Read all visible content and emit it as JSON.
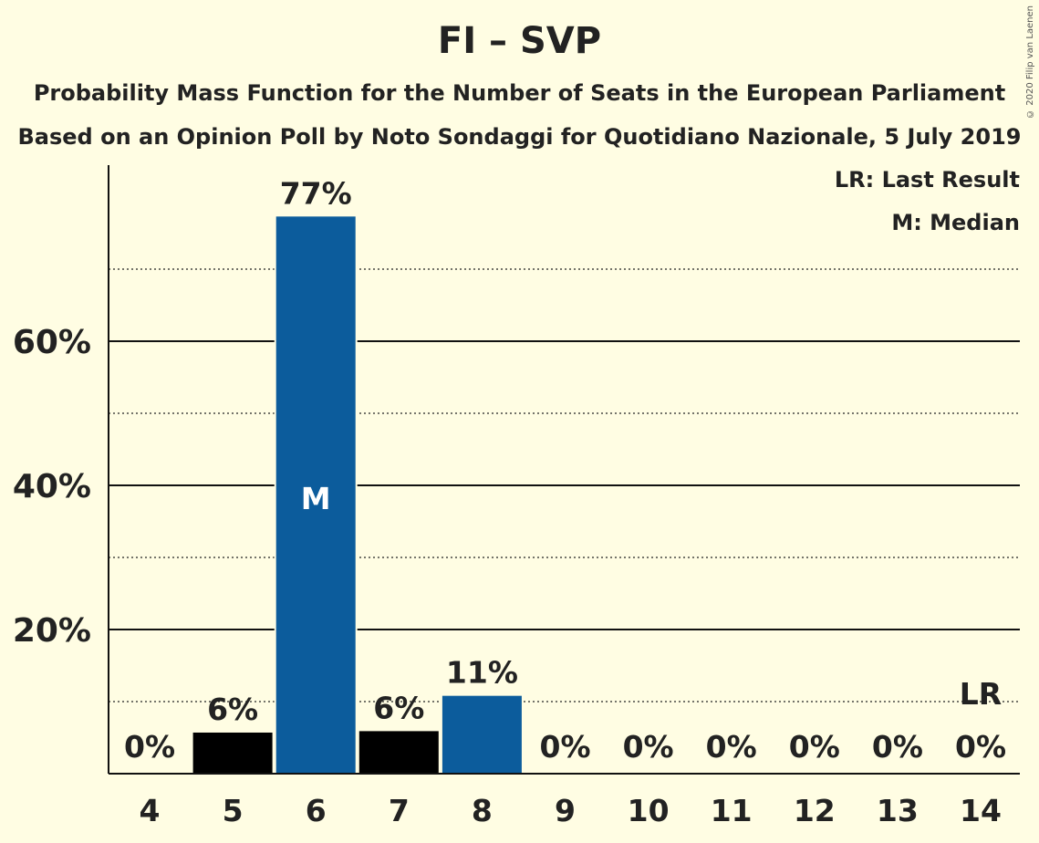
{
  "title": "FI – SVP",
  "subtitle1": "Probability Mass Function for the Number of Seats in the European Parliament",
  "subtitle2": "Based on an Opinion Poll by Noto Sondaggi for Quotidiano Nazionale, 5 July 2019",
  "copyright": "© 2020 Filip van Laenen",
  "legend": {
    "last_result": "LR: Last Result",
    "median": "M: Median"
  },
  "colors": {
    "background": "#fffde3",
    "party": "#0c5c9c",
    "below_median": "#000000",
    "median_text": "#ffffff"
  },
  "chart_data": {
    "type": "bar",
    "categories": [
      "4",
      "5",
      "6",
      "7",
      "8",
      "9",
      "10",
      "11",
      "12",
      "13",
      "14"
    ],
    "values": [
      0,
      6,
      77,
      6,
      11,
      0,
      0,
      0,
      0,
      0,
      0
    ],
    "exact_values": [
      0,
      5.7,
      77.3,
      5.9,
      10.8,
      0,
      0,
      0,
      0,
      0,
      0
    ],
    "labels": [
      "0%",
      "6%",
      "77%",
      "6%",
      "11%",
      "0%",
      "0%",
      "0%",
      "0%",
      "0%",
      "0%"
    ],
    "bar_colors": [
      "#000000",
      "#000000",
      "#0c5c9c",
      "#000000",
      "#0c5c9c",
      "#0c5c9c",
      "#0c5c9c",
      "#0c5c9c",
      "#0c5c9c",
      "#0c5c9c",
      "#0c5c9c"
    ],
    "median_category": "6",
    "median_label": "M",
    "last_result_category": "14",
    "last_result_label": "LR",
    "yticks": [
      20,
      40,
      60
    ],
    "ytick_labels": [
      "20%",
      "40%",
      "60%"
    ],
    "minor_gridlines": [
      10,
      30,
      50,
      70
    ],
    "ylim": [
      0,
      84
    ],
    "xlabel": "",
    "ylabel": ""
  }
}
